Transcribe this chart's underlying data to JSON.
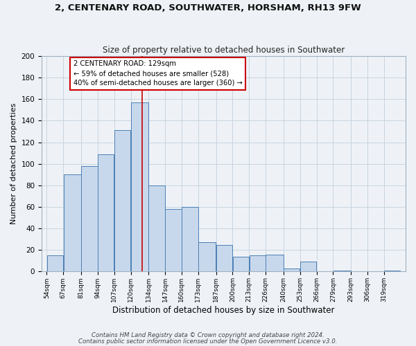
{
  "title1": "2, CENTENARY ROAD, SOUTHWATER, HORSHAM, RH13 9FW",
  "title2": "Size of property relative to detached houses in Southwater",
  "xlabel": "Distribution of detached houses by size in Southwater",
  "ylabel": "Number of detached properties",
  "bar_labels": [
    "54sqm",
    "67sqm",
    "81sqm",
    "94sqm",
    "107sqm",
    "120sqm",
    "134sqm",
    "147sqm",
    "160sqm",
    "173sqm",
    "187sqm",
    "200sqm",
    "213sqm",
    "226sqm",
    "240sqm",
    "253sqm",
    "266sqm",
    "279sqm",
    "293sqm",
    "306sqm",
    "319sqm"
  ],
  "bar_heights": [
    15,
    90,
    98,
    109,
    131,
    157,
    80,
    58,
    60,
    27,
    25,
    14,
    15,
    16,
    3,
    9,
    0,
    1,
    0,
    0,
    1
  ],
  "bar_color": "#c8d8ec",
  "bar_edge_color": "#4a7fb5",
  "grid_color": "#c8d4de",
  "background_color": "#eef2f7",
  "annotation_line1": "2 CENTENARY ROAD: 129sqm",
  "annotation_line2": "← 59% of detached houses are smaller (528)",
  "annotation_line3": "40% of semi-detached houses are larger (360) →",
  "annotation_box_color": "#ffffff",
  "annotation_box_edge_color": "#cc0000",
  "property_line_x": 129,
  "property_line_color": "#cc0000",
  "ylim": [
    0,
    200
  ],
  "yticks": [
    0,
    20,
    40,
    60,
    80,
    100,
    120,
    140,
    160,
    180,
    200
  ],
  "footnote1": "Contains HM Land Registry data © Crown copyright and database right 2024.",
  "footnote2": "Contains public sector information licensed under the Open Government Licence v3.0.",
  "bin_edges": [
    54,
    67,
    81,
    94,
    107,
    120,
    134,
    147,
    160,
    173,
    187,
    200,
    213,
    226,
    240,
    253,
    266,
    279,
    293,
    306,
    319,
    332
  ]
}
